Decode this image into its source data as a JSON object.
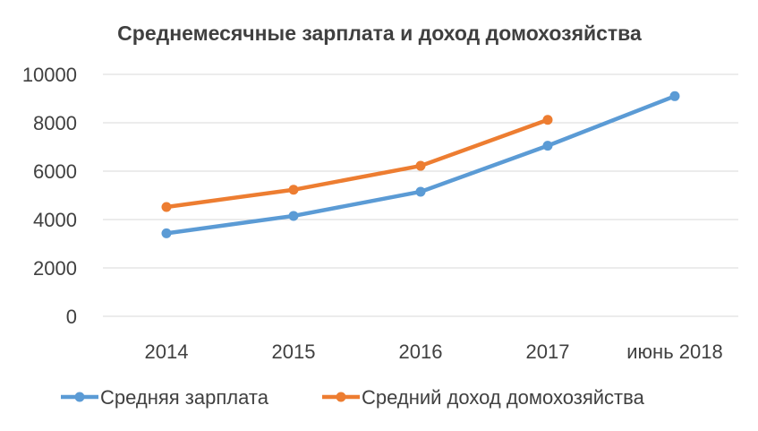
{
  "chart_data": {
    "type": "line",
    "title": "Среднемесячные зарплата и доход домохозяйства",
    "categories": [
      "2014",
      "2015",
      "2016",
      "2017",
      "июнь 2018"
    ],
    "series": [
      {
        "name": "Средняя зарплата",
        "values": [
          3430,
          4150,
          5150,
          7050,
          9100
        ],
        "color": "#5B9BD5"
      },
      {
        "name": "Средний доход домохозяйства",
        "values": [
          4520,
          5230,
          6220,
          8120,
          null
        ],
        "color": "#ED7D31"
      }
    ],
    "ylim": [
      0,
      10000
    ],
    "yticks": [
      "0",
      "2000",
      "4000",
      "6000",
      "8000",
      "10000"
    ],
    "grid": true,
    "legend_position": "bottom",
    "xlabel": "",
    "ylabel": ""
  }
}
